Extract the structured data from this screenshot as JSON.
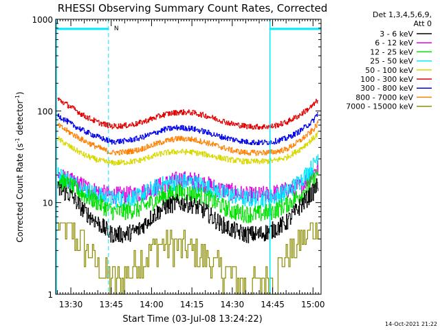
{
  "chart_data": {
    "type": "line",
    "title": "RHESSI Observing Summary Count Rates, Corrected",
    "xlabel": "Start Time (03-Jul-08 13:24:22)",
    "ylabel": "Corrected Count Rate (s",
    "ylabel_sup1": "-1",
    "ylabel_mid": " detector",
    "ylabel_sup2": "-1",
    "ylabel_end": ")",
    "yscale": "log",
    "ylim": [
      1,
      1000
    ],
    "xlim": [
      "13:24:22",
      "15:03:00"
    ],
    "xticks": [
      "13:30",
      "13:45",
      "14:00",
      "14:15",
      "14:30",
      "14:45",
      "15:00"
    ],
    "yticks": [
      {
        "value": 1,
        "label": "1"
      },
      {
        "value": 10,
        "label": "10"
      },
      {
        "value": 100,
        "label": "100"
      },
      {
        "value": 1000,
        "label": "1000"
      }
    ],
    "legend": {
      "placement": "right",
      "header1": "Det 1,3,4,5,6,9,",
      "header2": "Att 0"
    },
    "x": [
      "13:25",
      "13:30",
      "13:35",
      "13:40",
      "13:45",
      "13:50",
      "13:55",
      "14:00",
      "14:05",
      "14:10",
      "14:15",
      "14:20",
      "14:25",
      "14:30",
      "14:35",
      "14:40",
      "14:45",
      "14:50",
      "14:55",
      "15:00",
      "15:02"
    ],
    "series": [
      {
        "name": "3 - 6 keV",
        "color": "#000000",
        "values": [
          14,
          12,
          8,
          6,
          4.5,
          4.5,
          5,
          7,
          9,
          10,
          9.5,
          8,
          6,
          5,
          4.5,
          4.5,
          5,
          6,
          9,
          13,
          16
        ]
      },
      {
        "name": "6 - 12 keV",
        "color": "#e000e0",
        "values": [
          20,
          17,
          15,
          13,
          12,
          12,
          12.5,
          14,
          16,
          18,
          17.5,
          16,
          14,
          13,
          12,
          12,
          12.5,
          13.5,
          15,
          21,
          25
        ]
      },
      {
        "name": "12 - 25 keV",
        "color": "#00e000",
        "values": [
          18,
          15,
          12,
          10,
          8,
          8,
          8.5,
          10,
          12,
          13,
          12.5,
          11.5,
          9.5,
          8,
          7.5,
          7.5,
          8,
          9.5,
          12,
          17,
          22
        ]
      },
      {
        "name": "25 - 50 keV",
        "color": "#00e8ff",
        "values": [
          20,
          17,
          14,
          12,
          11,
          11,
          11.5,
          14,
          16,
          17,
          16.5,
          15,
          13,
          12,
          11,
          11,
          11.5,
          13,
          17,
          25,
          35
        ]
      },
      {
        "name": "50 - 100 keV",
        "color": "#d8d800",
        "values": [
          50,
          40,
          33,
          29,
          27,
          27.5,
          28.5,
          32,
          35,
          36,
          35.5,
          33.5,
          31,
          29,
          28,
          28,
          28.5,
          31,
          38,
          50,
          58
        ]
      },
      {
        "name": "100 - 300 keV",
        "color": "#e00000",
        "values": [
          135,
          110,
          88,
          75,
          68,
          69,
          73,
          82,
          92,
          97,
          96,
          89,
          80,
          72,
          68,
          67,
          68,
          75,
          90,
          115,
          135
        ]
      },
      {
        "name": "300 - 800 keV",
        "color": "#0000e8",
        "values": [
          90,
          72,
          60,
          52,
          46,
          47,
          50,
          56,
          63,
          66,
          64,
          59,
          53,
          49,
          46,
          45,
          46,
          50,
          60,
          78,
          98
        ]
      },
      {
        "name": "800 - 7000 keV",
        "color": "#ff8000",
        "values": [
          70,
          57,
          47,
          40,
          35,
          35.5,
          37.5,
          42,
          47,
          50,
          49,
          45.5,
          41,
          37,
          35,
          35,
          35.5,
          38,
          47,
          62,
          75
        ]
      },
      {
        "name": "7000 - 15000 keV",
        "color": "#8b8b00",
        "values": [
          6,
          4.5,
          3.2,
          2,
          1.3,
          1.5,
          2.2,
          3,
          3.5,
          3.3,
          2.8,
          2.5,
          1.8,
          1.5,
          1.3,
          1.3,
          1.5,
          2.5,
          3.5,
          5,
          6.5
        ]
      }
    ],
    "markers": {
      "flags": [
        {
          "label": "",
          "x_start": "13:24:22",
          "x_end": "13:44:00"
        },
        {
          "label": "",
          "x_start": "14:44:00",
          "x_end": "15:03:00"
        }
      ],
      "flag_text": "N",
      "lines": [
        "13:44:00",
        "14:44:00",
        "15:03:00"
      ]
    },
    "grid": false
  },
  "footer": {
    "timestamp": "14-Oct-2021 21:22"
  },
  "colors": {
    "background": "#ffffff",
    "axis": "#000000",
    "markers": "#00e8ff"
  }
}
